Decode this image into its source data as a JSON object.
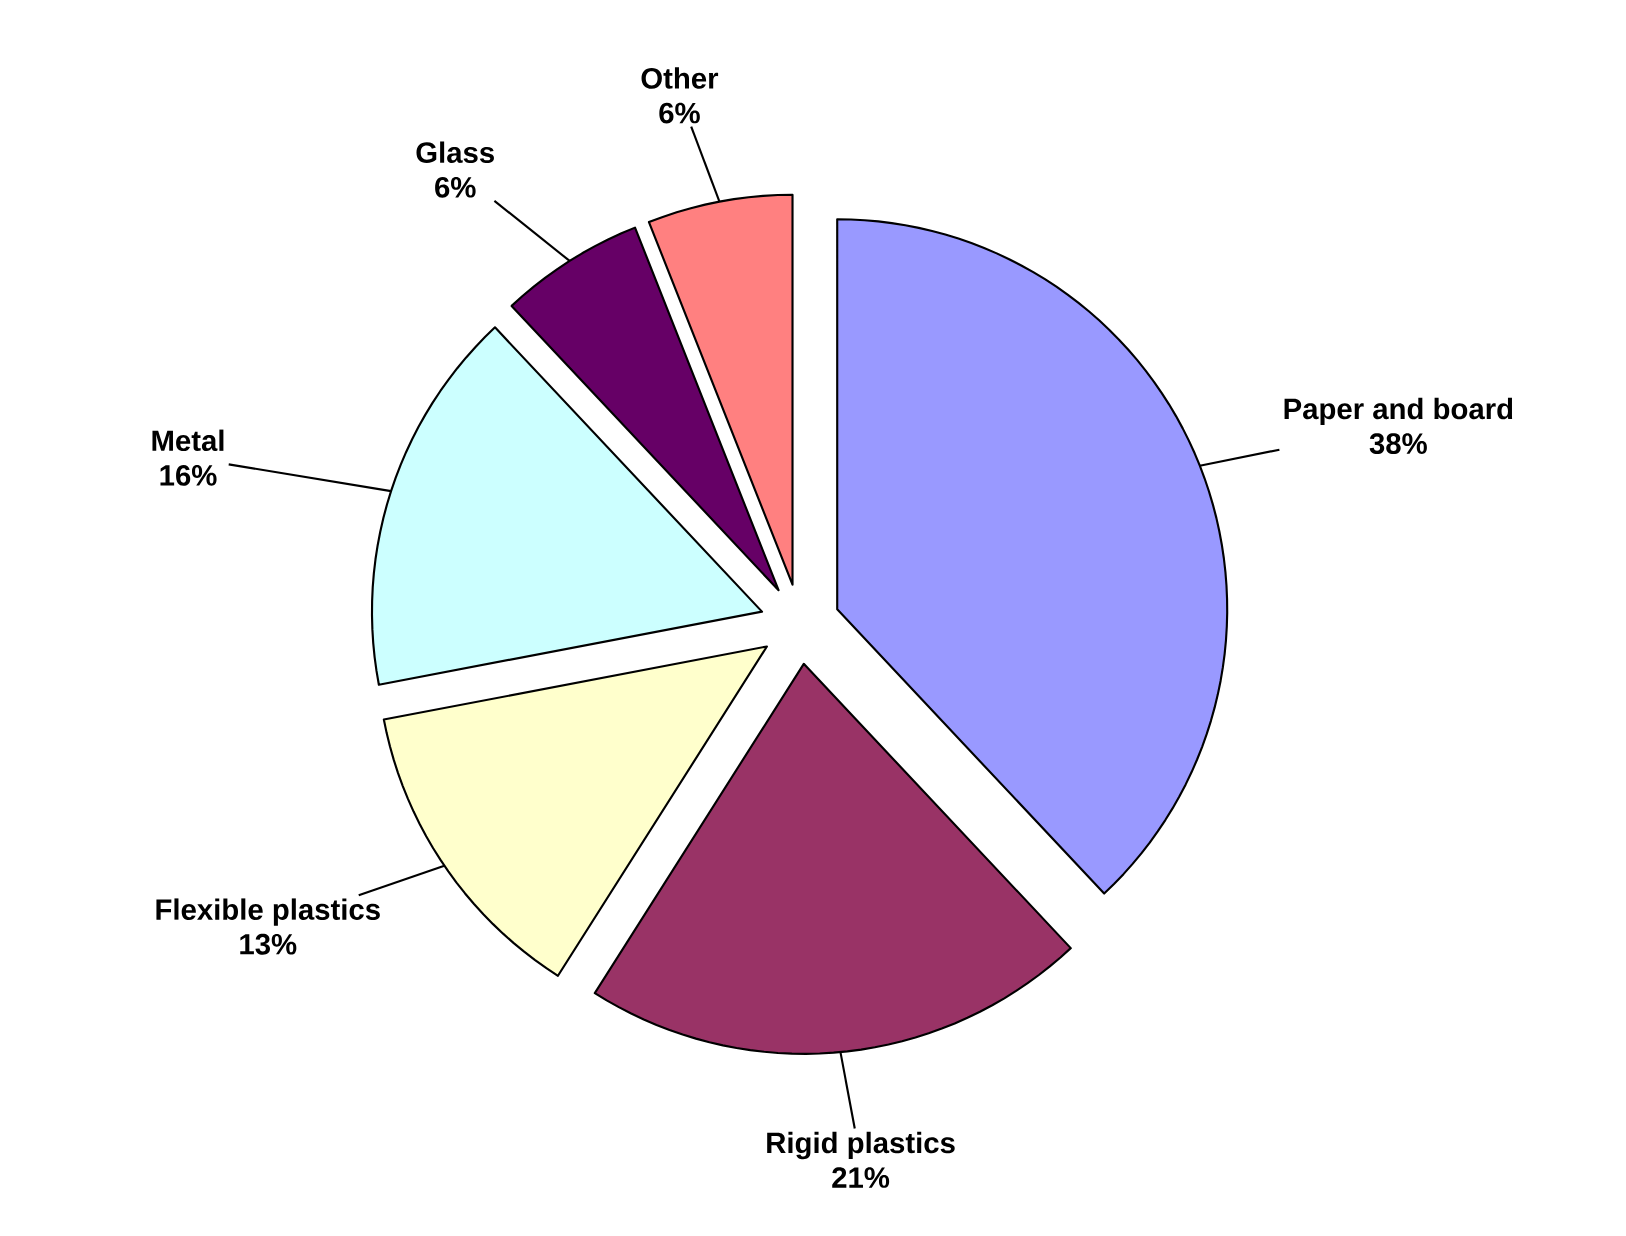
{
  "chart_data": {
    "type": "pie",
    "categories": [
      "Paper and board",
      "Rigid plastics",
      "Flexible plastics",
      "Metal",
      "Glass",
      "Other"
    ],
    "values": [
      38,
      21,
      13,
      16,
      6,
      6
    ],
    "value_labels": [
      "38%",
      "21%",
      "13%",
      "16%",
      "6%",
      "6%"
    ],
    "colors": [
      "#9999ff",
      "#993366",
      "#ffffcc",
      "#ccffff",
      "#660066",
      "#ff8080"
    ]
  }
}
